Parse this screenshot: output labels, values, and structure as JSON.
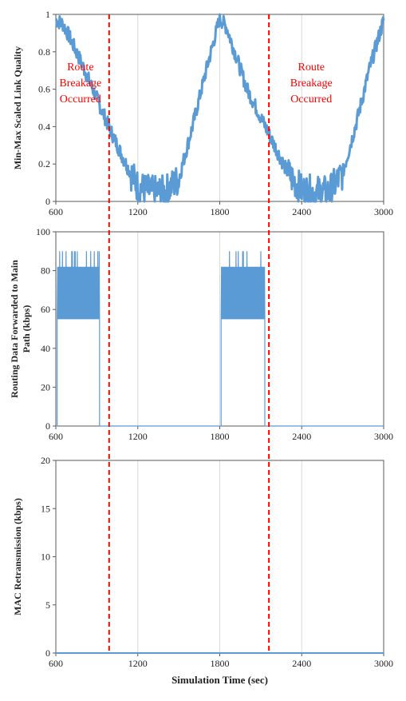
{
  "colors": {
    "series": "#5b9bd5",
    "route_line": "#ff0000",
    "grid": "#d9d9d9",
    "axis": "#595959"
  },
  "chart_data": [
    {
      "type": "line",
      "id": "link-quality",
      "ylabel": "Min-Max Scaled Link Quality",
      "xlabel": "",
      "xlim": [
        600,
        3000
      ],
      "ylim": [
        0,
        1
      ],
      "xticks": [
        600,
        1200,
        1800,
        2400,
        3000
      ],
      "yticks": [
        0,
        0.2,
        0.4,
        0.6,
        0.8,
        1
      ],
      "ytick_labels": [
        "0",
        "0.2",
        "0.4",
        "0.6",
        "0.8",
        "1"
      ],
      "grid": "vertical",
      "series": [
        {
          "x": [
            600,
            650,
            700,
            800,
            900,
            1000,
            1100,
            1200,
            1300,
            1400,
            1500,
            1600,
            1700,
            1800,
            1850,
            1900,
            2000,
            2100,
            2200,
            2300,
            2400,
            2500,
            2600,
            2700,
            2800,
            2900,
            3000
          ],
          "y": [
            0.97,
            0.95,
            0.88,
            0.72,
            0.55,
            0.38,
            0.22,
            0.08,
            0.05,
            0.05,
            0.12,
            0.4,
            0.7,
            0.98,
            0.93,
            0.82,
            0.6,
            0.45,
            0.3,
            0.15,
            0.06,
            0.05,
            0.05,
            0.15,
            0.42,
            0.72,
            0.97
          ]
        }
      ],
      "annotations": [
        {
          "lines": [
            "Route",
            "Breakage",
            "Occurred"
          ],
          "x": 780
        },
        {
          "lines": [
            "Route",
            "Breakage",
            "Occurred"
          ],
          "x": 2470
        }
      ]
    },
    {
      "type": "line",
      "id": "routing-data",
      "ylabel": "Routing Data Forwarded to Main Path (kbps)",
      "ylabel_lines": [
        "Routing Data Forwarded to Main",
        "Path (kbps)"
      ],
      "xlabel": "",
      "xlim": [
        600,
        3000
      ],
      "ylim": [
        0,
        100
      ],
      "xticks": [
        600,
        1200,
        1800,
        2400,
        3000
      ],
      "yticks": [
        0,
        20,
        40,
        60,
        80,
        100
      ],
      "ytick_labels": [
        "0",
        "20",
        "40",
        "60",
        "80",
        "100"
      ],
      "grid": "vertical",
      "series": [
        {
          "segments": [
            {
              "x": [
                600,
                610,
                620,
                920,
                925,
                930,
                1800
              ],
              "y": [
                0,
                0,
                70,
                70,
                60,
                0,
                0
              ],
              "band": [
                55,
                90
              ],
              "band_x": [
                610,
                920
              ]
            },
            {
              "x": [
                1800,
                1810,
                1820,
                2130,
                2135,
                3000
              ],
              "y": [
                0,
                0,
                70,
                70,
                0,
                0
              ],
              "band": [
                55,
                90
              ],
              "band_x": [
                1810,
                2130
              ]
            }
          ]
        }
      ]
    },
    {
      "type": "line",
      "id": "mac-retransmission",
      "ylabel": "MAC Retransmission (kbps)",
      "xlabel": "Simulation Time (sec)",
      "xlim": [
        600,
        3000
      ],
      "ylim": [
        0,
        20
      ],
      "xticks": [
        600,
        1200,
        1800,
        2400,
        3000
      ],
      "yticks": [
        0,
        5,
        10,
        15,
        20
      ],
      "ytick_labels": [
        "0",
        "5",
        "10",
        "15",
        "20"
      ],
      "grid": "vertical",
      "series": [
        {
          "x": [
            600,
            3000
          ],
          "y": [
            0,
            0
          ]
        }
      ]
    }
  ],
  "route_breaks": [
    990,
    2160
  ]
}
